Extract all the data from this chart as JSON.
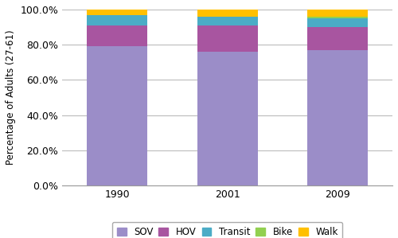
{
  "years": [
    "1990",
    "2001",
    "2009"
  ],
  "categories": [
    "SOV",
    "HOV",
    "Transit",
    "Bike",
    "Walk"
  ],
  "values": {
    "SOV": [
      79,
      76,
      77
    ],
    "HOV": [
      12,
      15,
      13
    ],
    "Transit": [
      6,
      5,
      5
    ],
    "Bike": [
      0,
      0,
      1
    ],
    "Walk": [
      3,
      4,
      4
    ]
  },
  "colors": {
    "SOV": "#9B8DC8",
    "HOV": "#A855A0",
    "Transit": "#4BACC6",
    "Bike": "#92D050",
    "Walk": "#FFC000"
  },
  "ylabel": "Percentage of Adults (27-61)",
  "ylim": [
    0,
    100
  ],
  "yticks": [
    0,
    20,
    40,
    60,
    80,
    100
  ],
  "ytick_labels": [
    "0.0%",
    "20.0%",
    "40.0%",
    "60.0%",
    "80.0%",
    "100.0%"
  ],
  "bar_width": 0.55,
  "background_color": "#ffffff",
  "grid_color": "#bbbbbb",
  "figsize": [
    5.0,
    2.99
  ],
  "dpi": 100
}
